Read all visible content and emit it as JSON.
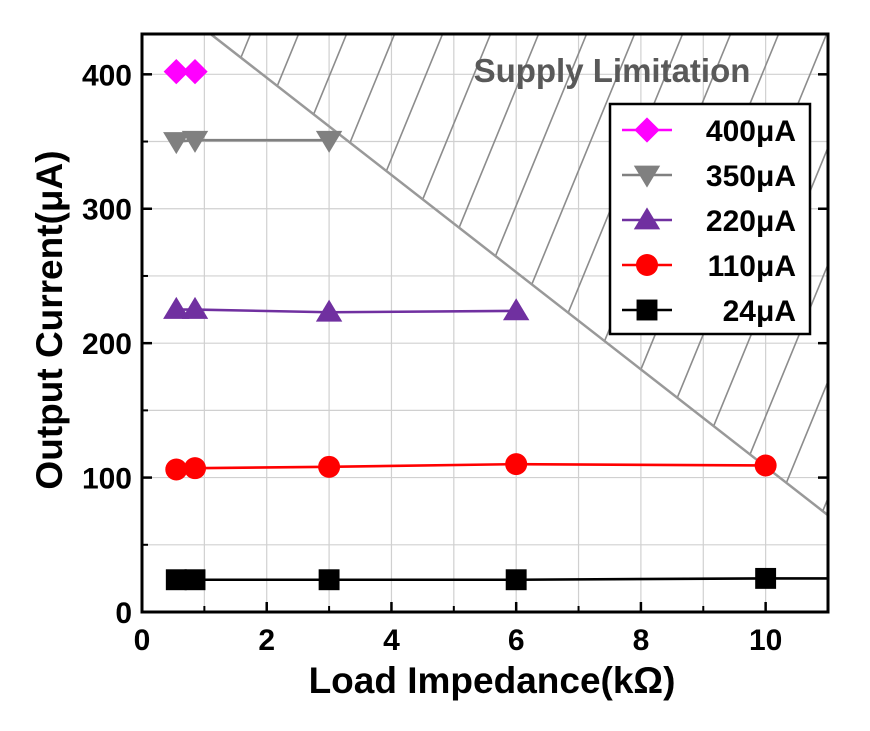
{
  "chart_data": {
    "type": "line",
    "title": "",
    "xlabel": "Load Impedance(kΩ)",
    "ylabel": "Output Current(μA)",
    "xlim": [
      0,
      11
    ],
    "ylim": [
      0,
      430
    ],
    "xticks": [
      0,
      2,
      4,
      6,
      8,
      10
    ],
    "yticks": [
      0,
      100,
      200,
      300,
      400
    ],
    "grid": true,
    "legend_position": "top-right",
    "annotation": "Supply Limitation",
    "limitation_line": {
      "x": [
        1.1,
        11
      ],
      "y": [
        430,
        72
      ]
    },
    "series": [
      {
        "name": "400μA",
        "color": "#ff00ff",
        "marker": "diamond",
        "x": [
          0.55,
          0.85
        ],
        "y": [
          402,
          402
        ]
      },
      {
        "name": "350μA",
        "color": "#808080",
        "marker": "triangle-down",
        "x": [
          0.55,
          0.85,
          3
        ],
        "y": [
          350,
          351,
          351
        ]
      },
      {
        "name": "220μA",
        "color": "#7030a0",
        "marker": "triangle-up",
        "x": [
          0.55,
          0.85,
          3,
          6
        ],
        "y": [
          225,
          225,
          223,
          224
        ]
      },
      {
        "name": "110μA",
        "color": "#ff0000",
        "marker": "circle",
        "x": [
          0.55,
          0.85,
          3,
          6,
          10
        ],
        "y": [
          106,
          107,
          108,
          110,
          109
        ]
      },
      {
        "name": "24μA",
        "color": "#000000",
        "marker": "square",
        "x": [
          0.55,
          0.85,
          3,
          6,
          10
        ],
        "y": [
          24,
          24,
          24,
          24,
          25
        ],
        "line_extends_to_x": 11
      }
    ]
  }
}
